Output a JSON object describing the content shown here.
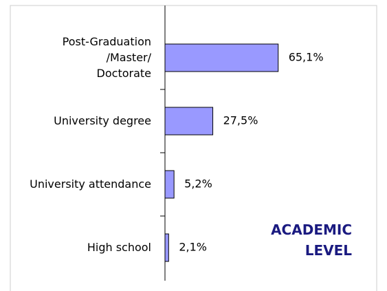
{
  "chart_data": {
    "type": "hbar",
    "categories": [
      "Post-Graduation\n/Master/\nDoctorate",
      "University degree",
      "University attendance",
      "High school"
    ],
    "values": [
      65.1,
      27.5,
      5.2,
      2.1
    ],
    "value_labels": [
      "65,1%",
      "27,5%",
      "5,2%",
      "2,1%"
    ],
    "color": "#9999ff",
    "xlim": [
      0,
      100
    ],
    "annotation": "ACADEMIC\nLEVEL"
  }
}
